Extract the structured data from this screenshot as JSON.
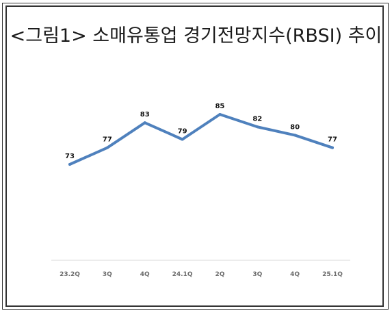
{
  "title": "<그림1> 소매유통업 경기전망지수(RBSI) 추이",
  "colors": {
    "line": "#4f81bd",
    "label": "#111111",
    "highlight_label": "#a6192e",
    "axis": "#d9d9d9",
    "tick_label": "#6b6b6b",
    "border": "#333333"
  },
  "chart_data": {
    "type": "line",
    "title": "<그림1> 소매유통업 경기전망지수(RBSI) 추이",
    "categories": [
      "23.2Q",
      "3Q",
      "4Q",
      "24.1Q",
      "2Q",
      "3Q",
      "4Q",
      "25.1Q"
    ],
    "series": [
      {
        "values": [
          73,
          77,
          83,
          79,
          85,
          82,
          80,
          77
        ]
      }
    ],
    "data_labels": [
      "73",
      "77",
      "83",
      "79",
      "85",
      "82",
      "80",
      "77"
    ],
    "highlight_index": 7,
    "xlabel": "",
    "ylabel": "",
    "grid": false,
    "legend": "none"
  }
}
